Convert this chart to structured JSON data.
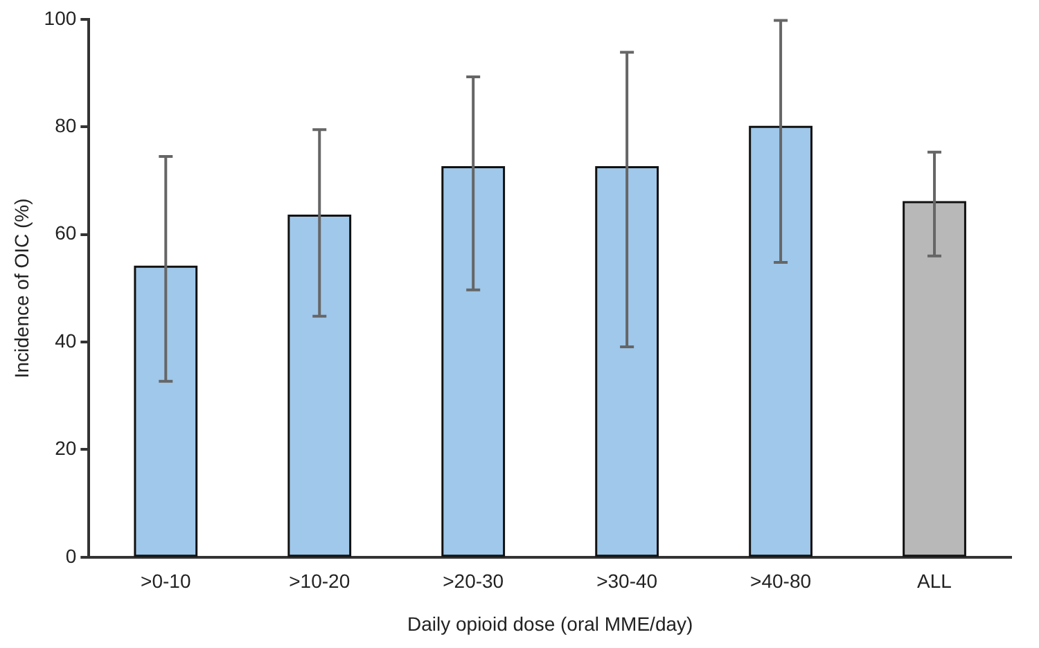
{
  "chart_data": {
    "type": "bar",
    "xlabel": "Daily opioid dose (oral MME/day)",
    "ylabel": "Incidence of OIC (%)",
    "categories": [
      ">0-10",
      ">10-20",
      ">20-30",
      ">30-40",
      ">40-80",
      "ALL"
    ],
    "values": [
      54,
      63.5,
      72.5,
      72.5,
      80,
      66
    ],
    "colors": [
      "#9fc8ea",
      "#9fc8ea",
      "#9fc8ea",
      "#9fc8ea",
      "#9fc8ea",
      "#b8b8b8"
    ],
    "errors": [
      [
        32.7,
        74.5
      ],
      [
        44.8,
        79.5
      ],
      [
        49.7,
        89.3
      ],
      [
        39.1,
        93.9
      ],
      [
        54.8,
        99.8
      ],
      [
        56,
        75.3
      ]
    ],
    "ylim": [
      0,
      100
    ],
    "yticks": [
      0,
      20,
      40,
      60,
      80,
      100
    ],
    "grid": false,
    "legend": false
  }
}
